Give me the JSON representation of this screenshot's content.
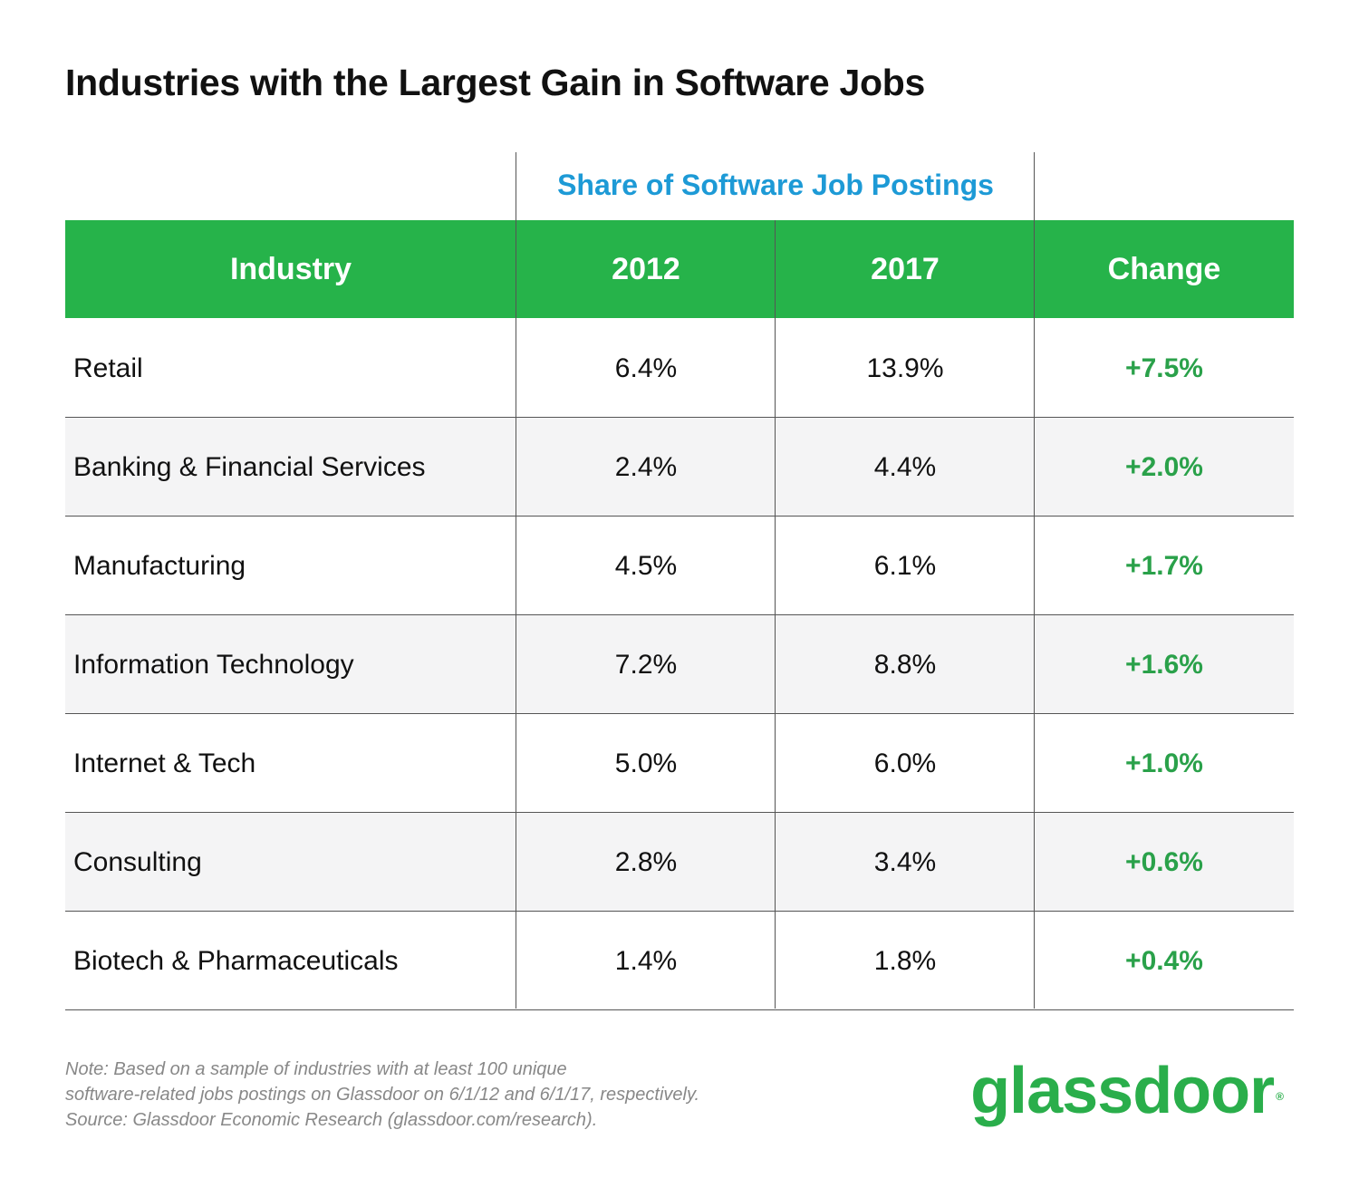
{
  "title": "Industries with the Largest Gain in Software Jobs",
  "group_header": "Share of Software Job Postings",
  "colors": {
    "header_green": "#26b34a",
    "accent_blue": "#1d9ad6",
    "change_green": "#2aa14a",
    "logo_green": "#2aae4b",
    "alt_row": "#f4f4f5"
  },
  "columns": [
    "Industry",
    "2012",
    "2017",
    "Change"
  ],
  "rows": [
    {
      "industry": "Retail",
      "y2012": "6.4%",
      "y2017": "13.9%",
      "change": "+7.5%"
    },
    {
      "industry": "Banking & Financial Services",
      "y2012": "2.4%",
      "y2017": "4.4%",
      "change": "+2.0%"
    },
    {
      "industry": "Manufacturing",
      "y2012": "4.5%",
      "y2017": "6.1%",
      "change": "+1.7%"
    },
    {
      "industry": "Information Technology",
      "y2012": "7.2%",
      "y2017": "8.8%",
      "change": "+1.6%"
    },
    {
      "industry": "Internet & Tech",
      "y2012": "5.0%",
      "y2017": "6.0%",
      "change": "+1.0%"
    },
    {
      "industry": "Consulting",
      "y2012": "2.8%",
      "y2017": "3.4%",
      "change": "+0.6%"
    },
    {
      "industry": "Biotech & Pharmaceuticals",
      "y2012": "1.4%",
      "y2017": "1.8%",
      "change": "+0.4%"
    }
  ],
  "note": [
    "Note: Based on a sample of industries with at least 100 unique",
    "software-related jobs postings on Glassdoor on 6/1/12 and 6/1/17, respectively.",
    "Source: Glassdoor Economic Research (glassdoor.com/research)."
  ],
  "logo": {
    "text": "glassdoor",
    "mark": "®"
  },
  "chart_data": {
    "type": "table",
    "title": "Industries with the Largest Gain in Software Jobs",
    "subtitle": "Share of Software Job Postings",
    "columns": [
      "Industry",
      "2012",
      "2017",
      "Change"
    ],
    "categories": [
      "Retail",
      "Banking & Financial Services",
      "Manufacturing",
      "Information Technology",
      "Internet & Tech",
      "Consulting",
      "Biotech & Pharmaceuticals"
    ],
    "series": [
      {
        "name": "2012",
        "values": [
          6.4,
          2.4,
          4.5,
          7.2,
          5.0,
          2.8,
          1.4
        ]
      },
      {
        "name": "2017",
        "values": [
          13.9,
          4.4,
          6.1,
          8.8,
          6.0,
          3.4,
          1.8
        ]
      },
      {
        "name": "Change",
        "values": [
          7.5,
          2.0,
          1.7,
          1.6,
          1.0,
          0.6,
          0.4
        ]
      }
    ],
    "units": "%"
  }
}
